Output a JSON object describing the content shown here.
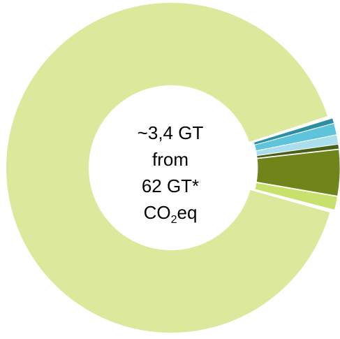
{
  "chart_data": {
    "type": "pie",
    "variant": "donut",
    "slices": [
      {
        "key": "main",
        "value": 91.23,
        "color": "#dce99d"
      },
      {
        "key": "teal-dark",
        "value": 0.5,
        "color": "#2a8fa3"
      },
      {
        "key": "cyan",
        "value": 1.12,
        "color": "#5ec4dc"
      },
      {
        "key": "light-blue",
        "value": 0.9,
        "color": "#a8deed"
      },
      {
        "key": "dark-olive",
        "value": 0.45,
        "color": "#4a6016"
      },
      {
        "key": "olive",
        "value": 4.5,
        "color": "#6f8419"
      },
      {
        "key": "yellow-green",
        "value": 1.3,
        "color": "#c8e06c"
      }
    ],
    "exploded": [
      "teal-dark",
      "cyan",
      "light-blue",
      "dark-olive",
      "olive",
      "yellow-green"
    ],
    "center_text": {
      "line1": "~3,4 GT",
      "line2": "from",
      "line3": "62 GT*",
      "line4_main": "CO",
      "line4_sub": "2",
      "line4_tail": "eq"
    }
  }
}
